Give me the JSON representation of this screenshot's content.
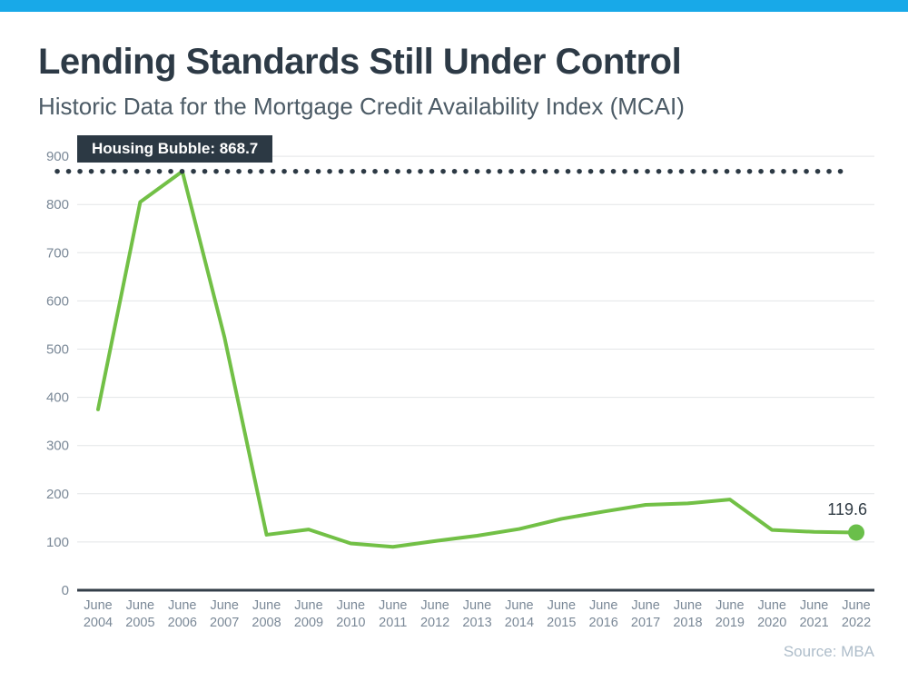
{
  "page": {
    "accent_color": "#18a9e8"
  },
  "header": {
    "title": "Lending Standards Still Under Control",
    "subtitle": "Historic Data for the Mortgage Credit Availability Index (MCAI)"
  },
  "chart_data": {
    "type": "line",
    "title": "Lending Standards Still Under Control",
    "subtitle": "Historic Data for the Mortgage Credit Availability Index (MCAI)",
    "categories": [
      "June 2004",
      "June 2005",
      "June 2006",
      "June 2007",
      "June 2008",
      "June 2009",
      "June 2010",
      "June 2011",
      "June 2012",
      "June 2013",
      "June 2014",
      "June 2015",
      "June 2016",
      "June 2017",
      "June 2018",
      "June 2019",
      "June 2020",
      "June 2021",
      "June 2022"
    ],
    "series": [
      {
        "name": "MCAI",
        "values": [
          375,
          805,
          868.7,
          525,
          115,
          126,
          97,
          90,
          102,
          113,
          127,
          148,
          163,
          177,
          180,
          188,
          125,
          121,
          119.6
        ]
      }
    ],
    "ylim": [
      0,
      900
    ],
    "yticks": [
      0,
      100,
      200,
      300,
      400,
      500,
      600,
      700,
      800,
      900
    ],
    "grid": true,
    "legend": "none",
    "threshold": {
      "label": "Housing Bubble: 868.7",
      "value": 868.7
    },
    "end_label": "119.6",
    "end_value": 119.6,
    "line_color": "#72c046",
    "dot_color": "#6abf4a",
    "threshold_color": "#2c3944",
    "grid_color": "#e3e5e7",
    "axis_color": "#343f4a",
    "tick_label_color": "#7a8897"
  },
  "footer": {
    "source": "Source: MBA"
  }
}
